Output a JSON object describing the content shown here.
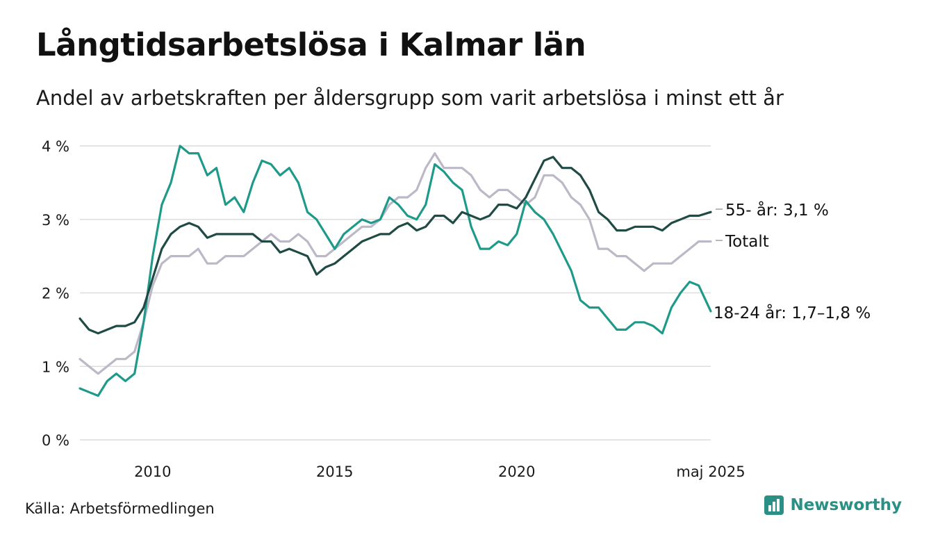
{
  "title": "Långtidsarbetslösa i Kalmar län",
  "subtitle": "Andel av arbetskraften per åldersgrupp som varit arbetslösa i minst ett år",
  "source": "Källa: Arbetsförmedlingen",
  "brand": "Newsworthy",
  "chart_data": {
    "type": "line",
    "title": "Långtidsarbetslösa i Kalmar län",
    "xlabel": "",
    "ylabel": "",
    "xlim": [
      2008.0,
      2025.33
    ],
    "ylim": [
      0,
      4
    ],
    "y_ticks": [
      0,
      1,
      2,
      3,
      4
    ],
    "y_tick_labels": [
      "0 %",
      "1 %",
      "2 %",
      "3 %",
      "4 %"
    ],
    "x_ticks": [
      2010,
      2015,
      2020,
      2025.33
    ],
    "x_tick_labels": [
      "2010",
      "2015",
      "2020",
      "maj 2025"
    ],
    "grid": true,
    "legend": "direct labels at line ends (right)",
    "series": [
      {
        "name": "Totalt",
        "label": "Totalt",
        "color": "#bdb8c8",
        "x": [
          2008.0,
          2008.25,
          2008.5,
          2008.75,
          2009.0,
          2009.25,
          2009.5,
          2009.75,
          2010.0,
          2010.25,
          2010.5,
          2010.75,
          2011.0,
          2011.25,
          2011.5,
          2011.75,
          2012.0,
          2012.25,
          2012.5,
          2012.75,
          2013.0,
          2013.25,
          2013.5,
          2013.75,
          2014.0,
          2014.25,
          2014.5,
          2014.75,
          2015.0,
          2015.25,
          2015.5,
          2015.75,
          2016.0,
          2016.25,
          2016.5,
          2016.75,
          2017.0,
          2017.25,
          2017.5,
          2017.75,
          2018.0,
          2018.25,
          2018.5,
          2018.75,
          2019.0,
          2019.25,
          2019.5,
          2019.75,
          2020.0,
          2020.25,
          2020.5,
          2020.75,
          2021.0,
          2021.25,
          2021.5,
          2021.75,
          2022.0,
          2022.25,
          2022.5,
          2022.75,
          2023.0,
          2023.25,
          2023.5,
          2023.75,
          2024.0,
          2024.25,
          2024.5,
          2024.75,
          2025.0,
          2025.33
        ],
        "values": [
          1.1,
          1.0,
          0.9,
          1.0,
          1.1,
          1.1,
          1.2,
          1.6,
          2.1,
          2.4,
          2.5,
          2.5,
          2.5,
          2.6,
          2.4,
          2.4,
          2.5,
          2.5,
          2.5,
          2.6,
          2.7,
          2.8,
          2.7,
          2.7,
          2.8,
          2.7,
          2.5,
          2.5,
          2.6,
          2.7,
          2.8,
          2.9,
          2.9,
          3.0,
          3.2,
          3.3,
          3.3,
          3.4,
          3.7,
          3.9,
          3.7,
          3.7,
          3.7,
          3.6,
          3.4,
          3.3,
          3.4,
          3.4,
          3.3,
          3.2,
          3.3,
          3.6,
          3.6,
          3.5,
          3.3,
          3.2,
          3.0,
          2.6,
          2.6,
          2.5,
          2.5,
          2.4,
          2.3,
          2.4,
          2.4,
          2.4,
          2.5,
          2.6,
          2.7,
          2.7
        ]
      },
      {
        "name": "18-24 år",
        "label": "18-24 år: 1,7–1,8 %",
        "color": "#1f9a8a",
        "x": [
          2008.0,
          2008.25,
          2008.5,
          2008.75,
          2009.0,
          2009.25,
          2009.5,
          2009.75,
          2010.0,
          2010.25,
          2010.5,
          2010.75,
          2011.0,
          2011.25,
          2011.5,
          2011.75,
          2012.0,
          2012.25,
          2012.5,
          2012.75,
          2013.0,
          2013.25,
          2013.5,
          2013.75,
          2014.0,
          2014.25,
          2014.5,
          2014.75,
          2015.0,
          2015.25,
          2015.5,
          2015.75,
          2016.0,
          2016.25,
          2016.5,
          2016.75,
          2017.0,
          2017.25,
          2017.5,
          2017.75,
          2018.0,
          2018.25,
          2018.5,
          2018.75,
          2019.0,
          2019.25,
          2019.5,
          2019.75,
          2020.0,
          2020.25,
          2020.5,
          2020.75,
          2021.0,
          2021.25,
          2021.5,
          2021.75,
          2022.0,
          2022.25,
          2022.5,
          2022.75,
          2023.0,
          2023.25,
          2023.5,
          2023.75,
          2024.0,
          2024.25,
          2024.5,
          2024.75,
          2025.0,
          2025.33
        ],
        "values": [
          0.7,
          0.65,
          0.6,
          0.8,
          0.9,
          0.8,
          0.9,
          1.6,
          2.5,
          3.2,
          3.5,
          4.0,
          3.9,
          3.9,
          3.6,
          3.7,
          3.2,
          3.3,
          3.1,
          3.5,
          3.8,
          3.75,
          3.6,
          3.7,
          3.5,
          3.1,
          3.0,
          2.8,
          2.6,
          2.8,
          2.9,
          3.0,
          2.95,
          3.0,
          3.3,
          3.2,
          3.05,
          3.0,
          3.2,
          3.75,
          3.65,
          3.5,
          3.4,
          2.9,
          2.6,
          2.6,
          2.7,
          2.65,
          2.8,
          3.25,
          3.1,
          3.0,
          2.8,
          2.55,
          2.3,
          1.9,
          1.8,
          1.8,
          1.65,
          1.5,
          1.5,
          1.6,
          1.6,
          1.55,
          1.45,
          1.8,
          2.0,
          2.15,
          2.1,
          1.75
        ]
      },
      {
        "name": "55- år",
        "label": "55- år: 3,1 %",
        "color": "#1f4b44",
        "x": [
          2008.0,
          2008.25,
          2008.5,
          2008.75,
          2009.0,
          2009.25,
          2009.5,
          2009.75,
          2010.0,
          2010.25,
          2010.5,
          2010.75,
          2011.0,
          2011.25,
          2011.5,
          2011.75,
          2012.0,
          2012.25,
          2012.5,
          2012.75,
          2013.0,
          2013.25,
          2013.5,
          2013.75,
          2014.0,
          2014.25,
          2014.5,
          2014.75,
          2015.0,
          2015.25,
          2015.5,
          2015.75,
          2016.0,
          2016.25,
          2016.5,
          2016.75,
          2017.0,
          2017.25,
          2017.5,
          2017.75,
          2018.0,
          2018.25,
          2018.5,
          2018.75,
          2019.0,
          2019.25,
          2019.5,
          2019.75,
          2020.0,
          2020.25,
          2020.5,
          2020.75,
          2021.0,
          2021.25,
          2021.5,
          2021.75,
          2022.0,
          2022.25,
          2022.5,
          2022.75,
          2023.0,
          2023.25,
          2023.5,
          2023.75,
          2024.0,
          2024.25,
          2024.5,
          2024.75,
          2025.0,
          2025.33
        ],
        "values": [
          1.65,
          1.5,
          1.45,
          1.5,
          1.55,
          1.55,
          1.6,
          1.8,
          2.2,
          2.6,
          2.8,
          2.9,
          2.95,
          2.9,
          2.75,
          2.8,
          2.8,
          2.8,
          2.8,
          2.8,
          2.7,
          2.7,
          2.55,
          2.6,
          2.55,
          2.5,
          2.25,
          2.35,
          2.4,
          2.5,
          2.6,
          2.7,
          2.75,
          2.8,
          2.8,
          2.9,
          2.95,
          2.85,
          2.9,
          3.05,
          3.05,
          2.95,
          3.1,
          3.05,
          3.0,
          3.05,
          3.2,
          3.2,
          3.15,
          3.3,
          3.55,
          3.8,
          3.85,
          3.7,
          3.7,
          3.6,
          3.4,
          3.1,
          3.0,
          2.85,
          2.85,
          2.9,
          2.9,
          2.9,
          2.85,
          2.95,
          3.0,
          3.05,
          3.05,
          3.1
        ]
      }
    ]
  }
}
